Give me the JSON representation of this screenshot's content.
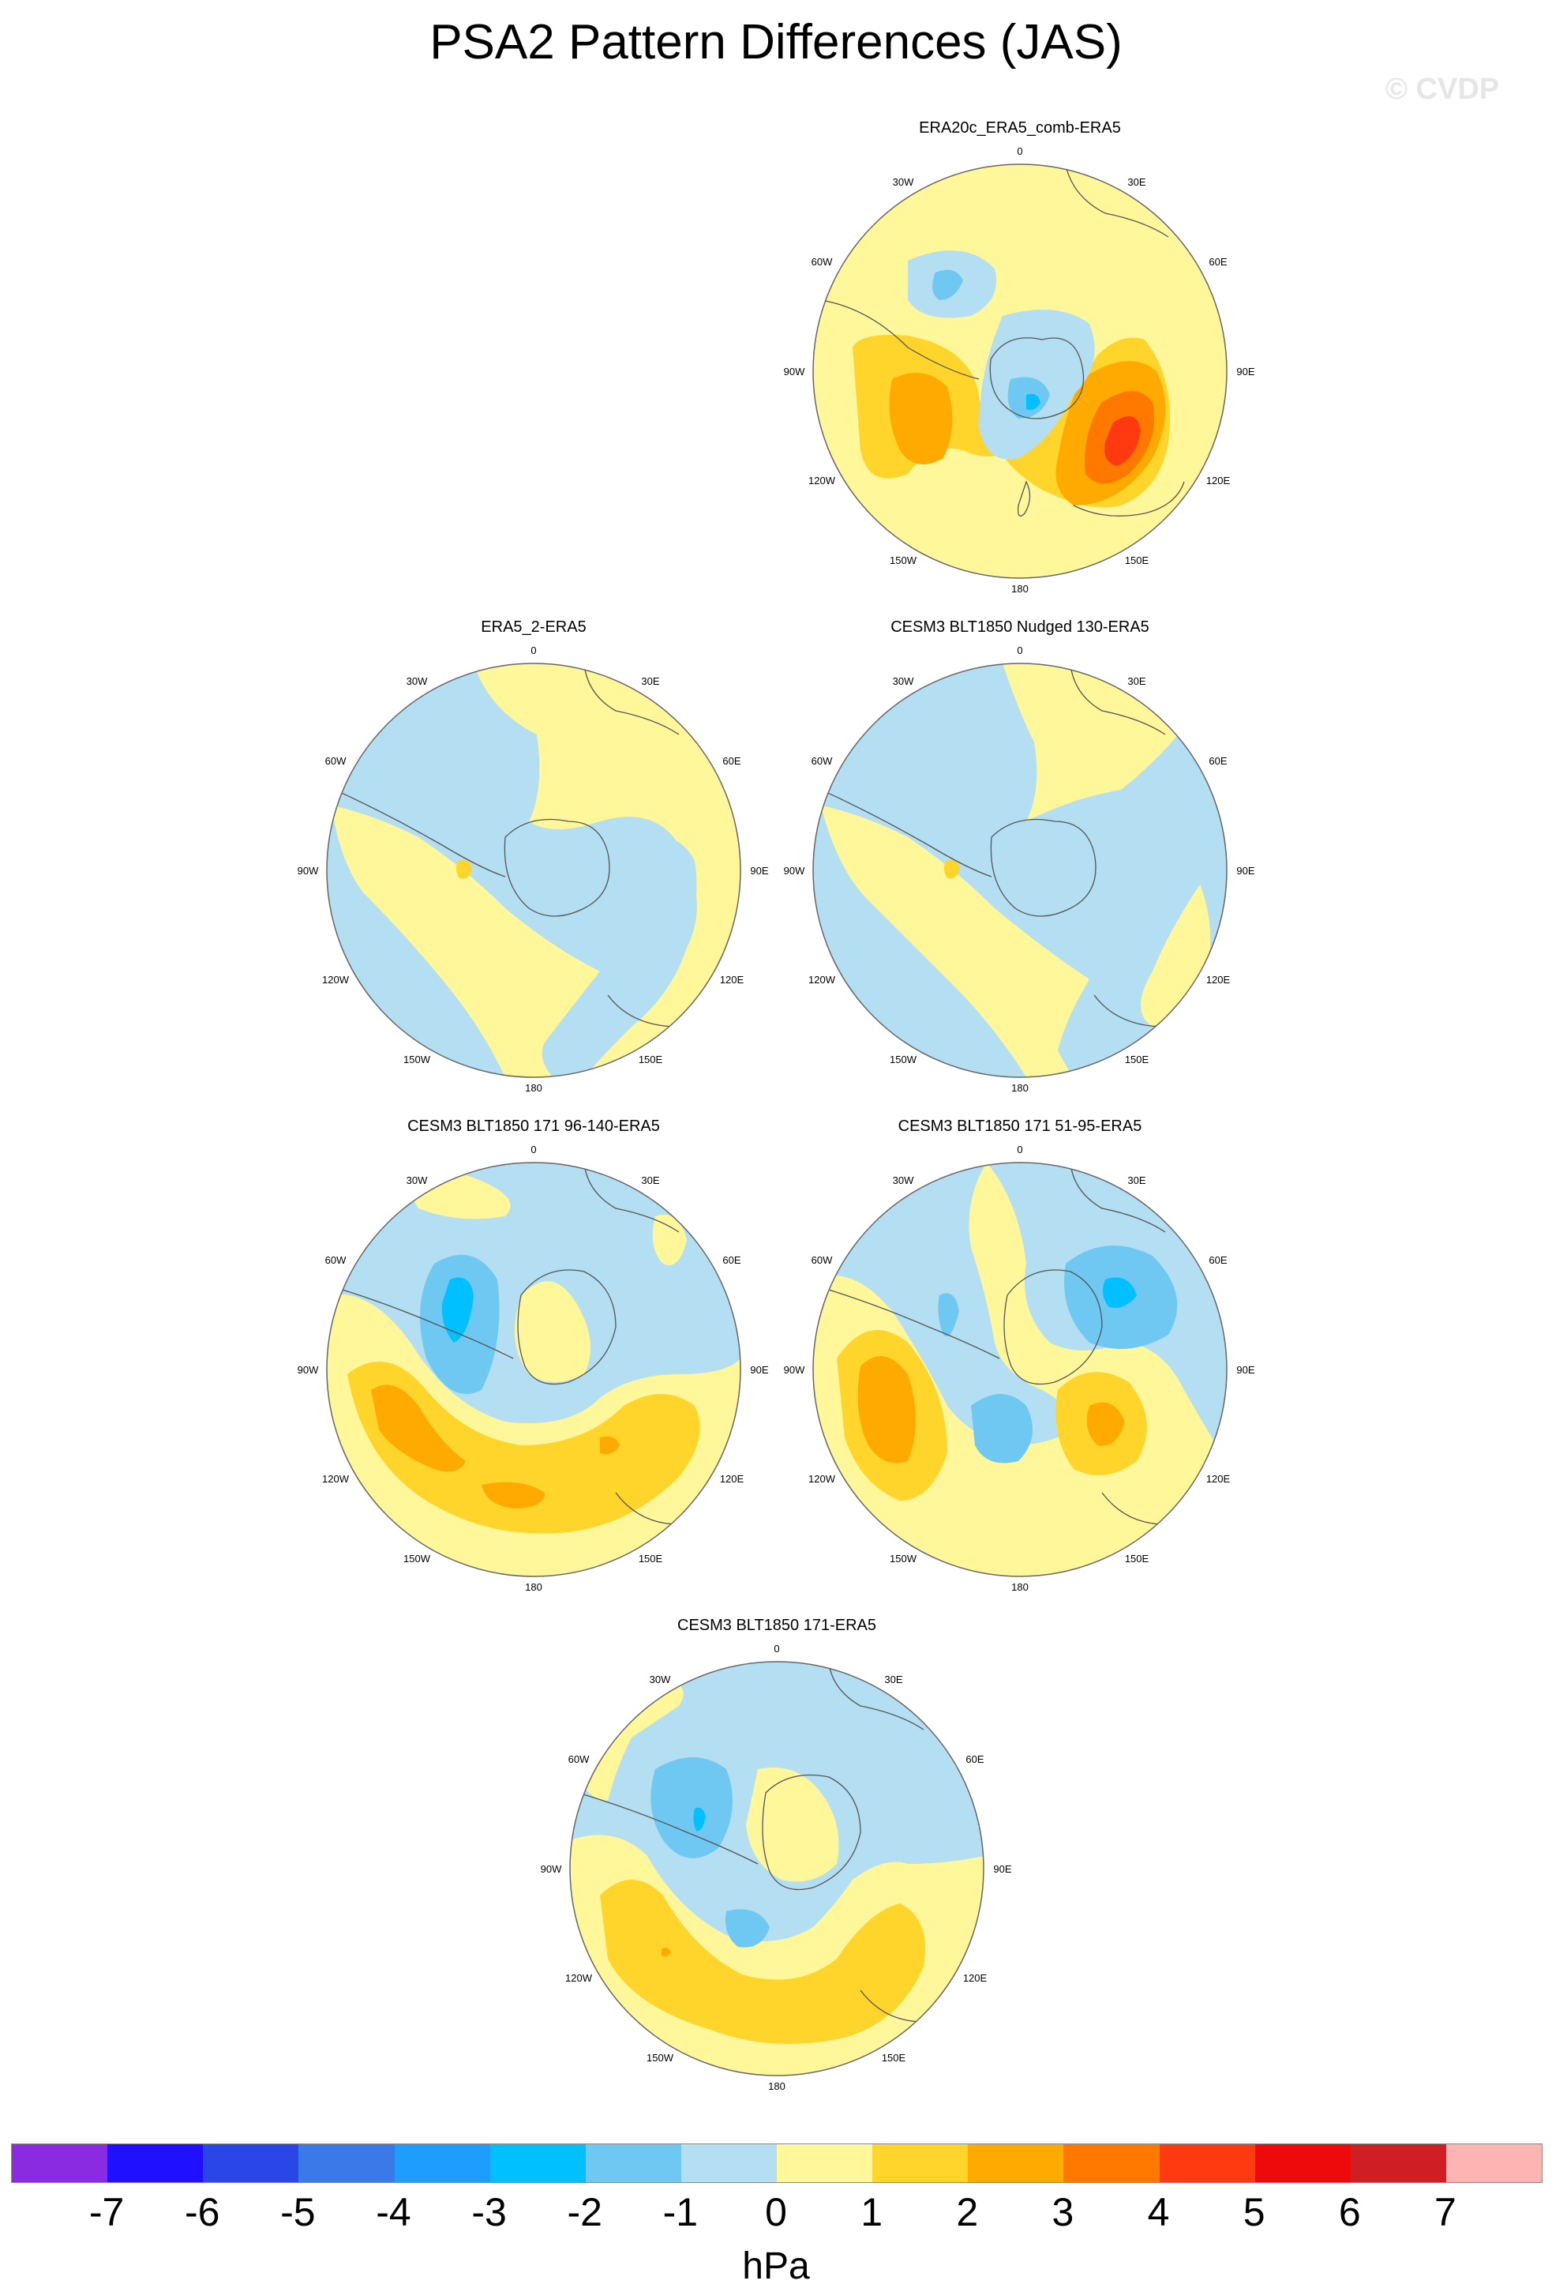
{
  "title": "PSA2 Pattern Differences (JAS)",
  "watermark": "© CVDP",
  "longitude_labels": [
    "0",
    "30E",
    "60E",
    "90E",
    "120E",
    "150E",
    "180",
    "150W",
    "120W",
    "90W",
    "60W",
    "30W"
  ],
  "colorbar": {
    "unit": "hPa",
    "ticks": [
      "-7",
      "-6",
      "-5",
      "-4",
      "-3",
      "-2",
      "-1",
      "0",
      "1",
      "2",
      "3",
      "4",
      "5",
      "6",
      "7"
    ],
    "colors": [
      "#8a2be2",
      "#1f10ff",
      "#2b46e6",
      "#3a7ae8",
      "#1e9dff",
      "#00c0ff",
      "#6ec8f2",
      "#b4def2",
      "#fff799",
      "#ffd52b",
      "#ffaa00",
      "#ff7800",
      "#ff3a10",
      "#ee0a0a",
      "#d01f24",
      "#ffb4b4"
    ]
  },
  "panels": [
    {
      "id": "era20c",
      "title": "ERA20c_ERA5_comb-ERA5"
    },
    {
      "id": "era5_2",
      "title": "ERA5_2-ERA5"
    },
    {
      "id": "nudged130",
      "title": "CESM3 BLT1850 Nudged 130-ERA5"
    },
    {
      "id": "m96_140",
      "title": "CESM3 BLT1850 171 96-140-ERA5"
    },
    {
      "id": "m51_95",
      "title": "CESM3 BLT1850 171 51-95-ERA5"
    },
    {
      "id": "m171",
      "title": "CESM3 BLT1850 171-ERA5"
    }
  ]
}
